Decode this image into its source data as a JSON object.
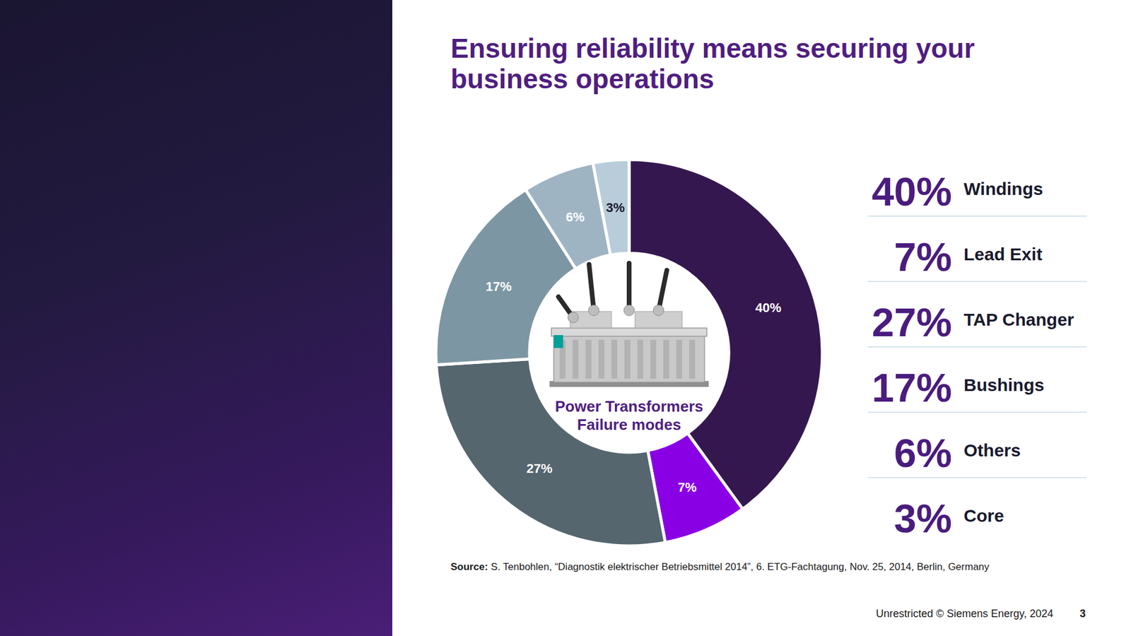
{
  "chart_data": {
    "type": "donut",
    "title": "Ensuring reliability means securing your business operations",
    "subtitle": "Power Transformers Failure modes",
    "categories": [
      "Windings",
      "Lead Exit",
      "TAP Changer",
      "Bushings",
      "Others",
      "Core"
    ],
    "values": [
      40,
      7,
      27,
      17,
      6,
      3
    ],
    "value_labels": [
      "40%",
      "7%",
      "27%",
      "17%",
      "6%",
      "3%"
    ],
    "colors": [
      "#35174f",
      "#8a00e5",
      "#55666f",
      "#7d96a3",
      "#9fb4c3",
      "#b8ccd9"
    ],
    "data_labels": true,
    "legend": "right"
  },
  "source_label": "Source:",
  "source": "S. Tenbohlen, “Diagnostik elektrischer Betriebsmittel 2014”, 6. ETG-Fachtagung, Nov. 25, 2014, Berlin, Germany",
  "footer": "Unrestricted © Siemens Energy, 2024",
  "page_number": 3
}
